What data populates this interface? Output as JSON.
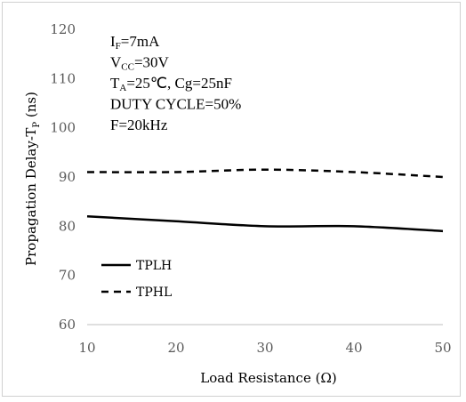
{
  "chart_data": {
    "type": "line",
    "xlabel": "Load Resistance (Ω)",
    "ylabel_main": "Propagation Delay-T",
    "ylabel_sub": "P",
    "ylabel_unit": " (ns)",
    "xlim": [
      10,
      50
    ],
    "ylim": [
      60,
      120
    ],
    "x_ticks": [
      "10",
      "20",
      "30",
      "40",
      "50"
    ],
    "y_ticks": [
      "60",
      "70",
      "80",
      "90",
      "100",
      "110",
      "120"
    ],
    "grid": false,
    "legend_position": "bottom-left",
    "conditions": [
      {
        "main": "I",
        "sub": "F",
        "rest": "=7mA"
      },
      {
        "main": "V",
        "sub": "CC",
        "rest": "=30V"
      },
      {
        "main": "T",
        "sub": "A",
        "rest": "=25℃, Cg=25nF"
      },
      {
        "main": "DUTY CYCLE=50%",
        "sub": "",
        "rest": ""
      },
      {
        "main": "F=20kHz",
        "sub": "",
        "rest": ""
      }
    ],
    "series": [
      {
        "name": "TPLH",
        "style": "solid",
        "color": "#000000",
        "x": [
          10,
          20,
          30,
          40,
          50
        ],
        "y": [
          82,
          81,
          80,
          80,
          79
        ]
      },
      {
        "name": "TPHL",
        "style": "dashed",
        "color": "#000000",
        "x": [
          10,
          20,
          30,
          40,
          50
        ],
        "y": [
          91,
          91,
          91.5,
          91,
          90
        ]
      }
    ]
  }
}
